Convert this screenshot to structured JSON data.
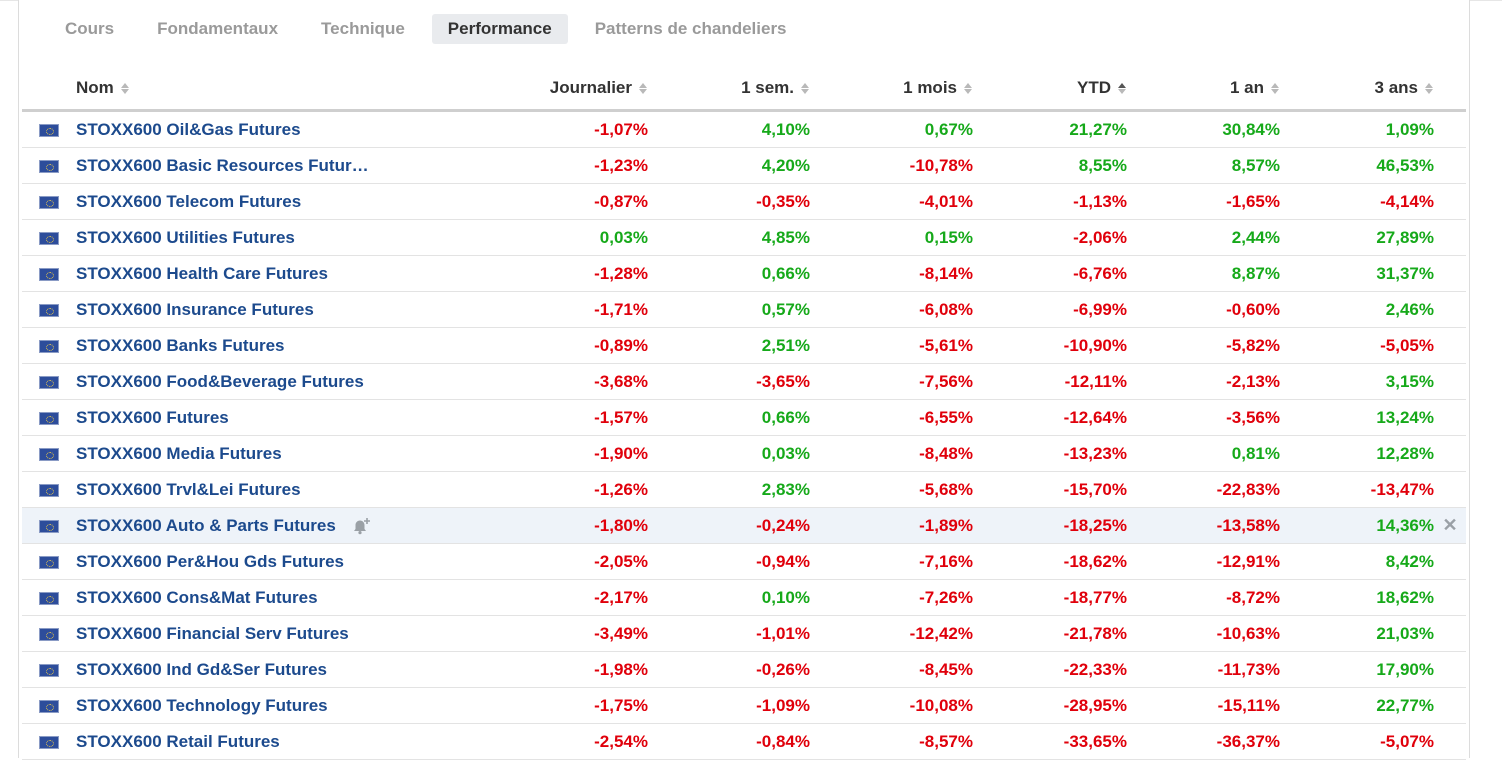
{
  "tabs": [
    "Cours",
    "Fondamentaux",
    "Technique",
    "Performance",
    "Patterns de chandeliers"
  ],
  "active_tab": "Performance",
  "columns": {
    "name": "Nom",
    "daily": "Journalier",
    "week": "1 sem.",
    "month": "1 mois",
    "ytd": "YTD",
    "year": "1 an",
    "three_years": "3 ans"
  },
  "sorted_column": "YTD",
  "colors": {
    "positive": "#16a91a",
    "negative": "#e0000b",
    "link": "#1c4a8d"
  },
  "flag_icon": "eu-flag-icon",
  "hovered_row_index": 11,
  "rows": [
    {
      "name": "STOXX600 Oil&Gas Futures",
      "d": "-1,07%",
      "w": "4,10%",
      "m": "0,67%",
      "ytd": "21,27%",
      "y": "30,84%",
      "y3": "1,09%"
    },
    {
      "name": "STOXX600 Basic Resources Futur…",
      "d": "-1,23%",
      "w": "4,20%",
      "m": "-10,78%",
      "ytd": "8,55%",
      "y": "8,57%",
      "y3": "46,53%"
    },
    {
      "name": "STOXX600 Telecom Futures",
      "d": "-0,87%",
      "w": "-0,35%",
      "m": "-4,01%",
      "ytd": "-1,13%",
      "y": "-1,65%",
      "y3": "-4,14%"
    },
    {
      "name": "STOXX600 Utilities Futures",
      "d": "0,03%",
      "w": "4,85%",
      "m": "0,15%",
      "ytd": "-2,06%",
      "y": "2,44%",
      "y3": "27,89%"
    },
    {
      "name": "STOXX600 Health Care Futures",
      "d": "-1,28%",
      "w": "0,66%",
      "m": "-8,14%",
      "ytd": "-6,76%",
      "y": "8,87%",
      "y3": "31,37%"
    },
    {
      "name": "STOXX600 Insurance Futures",
      "d": "-1,71%",
      "w": "0,57%",
      "m": "-6,08%",
      "ytd": "-6,99%",
      "y": "-0,60%",
      "y3": "2,46%"
    },
    {
      "name": "STOXX600 Banks Futures",
      "d": "-0,89%",
      "w": "2,51%",
      "m": "-5,61%",
      "ytd": "-10,90%",
      "y": "-5,82%",
      "y3": "-5,05%"
    },
    {
      "name": "STOXX600 Food&Beverage Futures",
      "d": "-3,68%",
      "w": "-3,65%",
      "m": "-7,56%",
      "ytd": "-12,11%",
      "y": "-2,13%",
      "y3": "3,15%"
    },
    {
      "name": "STOXX600 Futures",
      "d": "-1,57%",
      "w": "0,66%",
      "m": "-6,55%",
      "ytd": "-12,64%",
      "y": "-3,56%",
      "y3": "13,24%"
    },
    {
      "name": "STOXX600 Media Futures",
      "d": "-1,90%",
      "w": "0,03%",
      "m": "-8,48%",
      "ytd": "-13,23%",
      "y": "0,81%",
      "y3": "12,28%"
    },
    {
      "name": "STOXX600 Trvl&Lei Futures",
      "d": "-1,26%",
      "w": "2,83%",
      "m": "-5,68%",
      "ytd": "-15,70%",
      "y": "-22,83%",
      "y3": "-13,47%"
    },
    {
      "name": "STOXX600 Auto & Parts Futures",
      "d": "-1,80%",
      "w": "-0,24%",
      "m": "-1,89%",
      "ytd": "-18,25%",
      "y": "-13,58%",
      "y3": "14,36%"
    },
    {
      "name": "STOXX600 Per&Hou Gds Futures",
      "d": "-2,05%",
      "w": "-0,94%",
      "m": "-7,16%",
      "ytd": "-18,62%",
      "y": "-12,91%",
      "y3": "8,42%"
    },
    {
      "name": "STOXX600 Cons&Mat Futures",
      "d": "-2,17%",
      "w": "0,10%",
      "m": "-7,26%",
      "ytd": "-18,77%",
      "y": "-8,72%",
      "y3": "18,62%"
    },
    {
      "name": "STOXX600 Financial Serv Futures",
      "d": "-3,49%",
      "w": "-1,01%",
      "m": "-12,42%",
      "ytd": "-21,78%",
      "y": "-10,63%",
      "y3": "21,03%"
    },
    {
      "name": "STOXX600 Ind Gd&Ser Futures",
      "d": "-1,98%",
      "w": "-0,26%",
      "m": "-8,45%",
      "ytd": "-22,33%",
      "y": "-11,73%",
      "y3": "17,90%"
    },
    {
      "name": "STOXX600 Technology Futures",
      "d": "-1,75%",
      "w": "-1,09%",
      "m": "-10,08%",
      "ytd": "-28,95%",
      "y": "-15,11%",
      "y3": "22,77%"
    },
    {
      "name": "STOXX600 Retail Futures",
      "d": "-2,54%",
      "w": "-0,84%",
      "m": "-8,57%",
      "ytd": "-33,65%",
      "y": "-36,37%",
      "y3": "-5,07%"
    }
  ],
  "close_glyph": "✕"
}
